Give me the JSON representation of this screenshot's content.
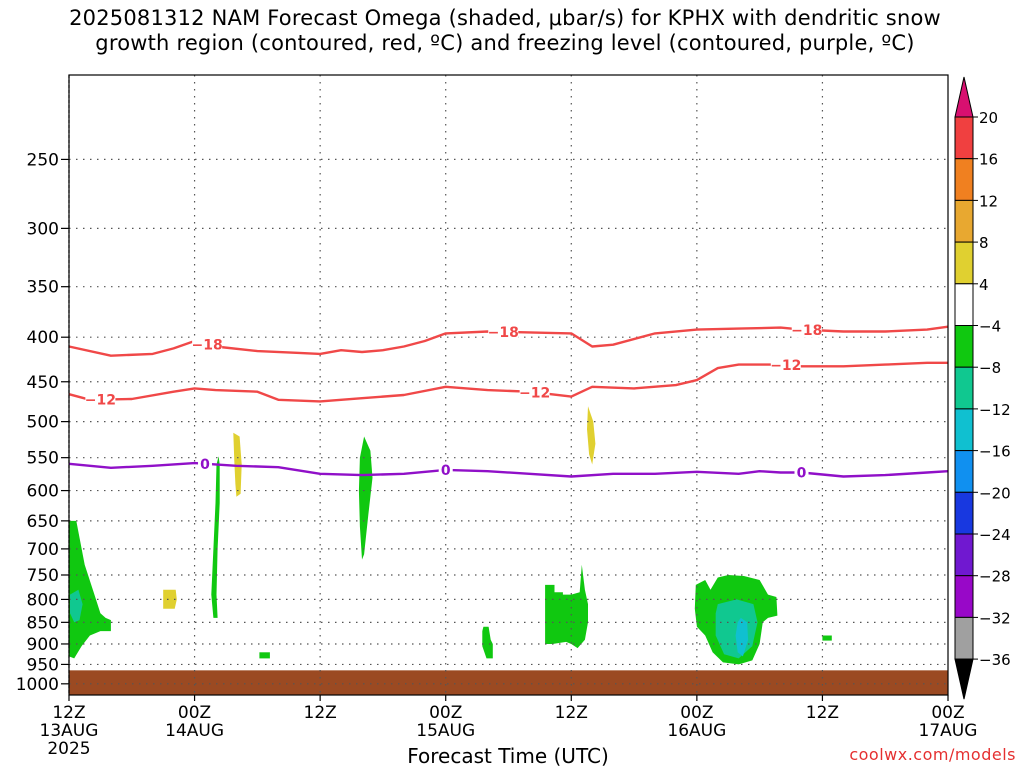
{
  "title": {
    "line1": "2025081312 NAM Forecast Omega (shaded, μbar/s) for KPHX with dendritic snow",
    "line2": "growth region (contoured, red, ºC) and freezing level (contoured, purple, ºC)"
  },
  "credit": "coolwx.com/models",
  "chart_data": {
    "type": "heatmap",
    "title": "2025081312 NAM Forecast Omega (shaded, μbar/s) for KPHX with dendritic snow growth region (contoured, red, ºC) and freezing level (contoured, purple, ºC)",
    "xlabel": "Forecast Time (UTC)",
    "ylabel": "",
    "x_unit": "hours from 2025-08-13 12Z",
    "xlim": [
      0,
      84
    ],
    "ylim": [
      1030,
      200
    ],
    "y_scale": "log-pressure (reversed)",
    "grid": true,
    "x_ticks": [
      {
        "x": 0,
        "lines": [
          "12Z",
          "13AUG",
          "2025"
        ]
      },
      {
        "x": 12,
        "lines": [
          "00Z",
          "14AUG"
        ]
      },
      {
        "x": 24,
        "lines": [
          "12Z"
        ]
      },
      {
        "x": 36,
        "lines": [
          "00Z",
          "15AUG"
        ]
      },
      {
        "x": 48,
        "lines": [
          "12Z"
        ]
      },
      {
        "x": 60,
        "lines": [
          "00Z",
          "16AUG"
        ]
      },
      {
        "x": 72,
        "lines": [
          "12Z"
        ]
      },
      {
        "x": 84,
        "lines": [
          "00Z",
          "17AUG"
        ]
      }
    ],
    "y_ticks": [
      250,
      300,
      350,
      400,
      450,
      500,
      550,
      600,
      650,
      700,
      750,
      800,
      850,
      900,
      950,
      1000
    ],
    "colorbar": {
      "labels": [
        "20",
        "16",
        "12",
        "8",
        "4",
        "−4",
        "−8",
        "−12",
        "−16",
        "−20",
        "−24",
        "−28",
        "−32",
        "−36"
      ],
      "colors": [
        "#f04040",
        "#f08020",
        "#e8a830",
        "#e0d030",
        "#ffffff",
        "#10c810",
        "#10c890",
        "#10c0d0",
        "#1090f0",
        "#1838e0",
        "#7018d0",
        "#9808c8",
        "#a0a0a0"
      ],
      "top_color": "#d81070",
      "bottom_color": "#000000"
    },
    "ground": {
      "from_hpa": 965,
      "color": "#9b4a22"
    },
    "contours": [
      {
        "label": "-18",
        "color": "#f04848",
        "label_x": [
          13.2,
          41.5,
          70.5
        ],
        "points": [
          [
            0,
            410
          ],
          [
            4,
            420
          ],
          [
            8,
            418
          ],
          [
            10,
            412
          ],
          [
            12,
            404
          ],
          [
            14,
            410
          ],
          [
            18,
            415
          ],
          [
            22,
            417
          ],
          [
            24,
            418
          ],
          [
            26,
            414
          ],
          [
            28,
            416
          ],
          [
            30,
            414
          ],
          [
            32,
            410
          ],
          [
            34,
            404
          ],
          [
            36,
            396
          ],
          [
            40,
            394
          ],
          [
            44,
            395
          ],
          [
            48,
            396
          ],
          [
            50,
            410
          ],
          [
            52,
            408
          ],
          [
            56,
            396
          ],
          [
            60,
            392
          ],
          [
            64,
            391
          ],
          [
            68,
            390
          ],
          [
            70,
            392
          ],
          [
            74,
            394
          ],
          [
            78,
            394
          ],
          [
            82,
            392
          ],
          [
            84,
            389
          ]
        ]
      },
      {
        "label": "-12",
        "color": "#f04848",
        "label_x": [
          3.0,
          44.5,
          68.5
        ],
        "points": [
          [
            0,
            465
          ],
          [
            2,
            472
          ],
          [
            6,
            471
          ],
          [
            10,
            462
          ],
          [
            12,
            458
          ],
          [
            14,
            460
          ],
          [
            18,
            462
          ],
          [
            20,
            472
          ],
          [
            24,
            474
          ],
          [
            28,
            470
          ],
          [
            32,
            466
          ],
          [
            36,
            456
          ],
          [
            40,
            460
          ],
          [
            44,
            462
          ],
          [
            48,
            468
          ],
          [
            50,
            456
          ],
          [
            54,
            458
          ],
          [
            58,
            454
          ],
          [
            60,
            448
          ],
          [
            62,
            434
          ],
          [
            64,
            430
          ],
          [
            68,
            430
          ],
          [
            70,
            432
          ],
          [
            74,
            432
          ],
          [
            78,
            430
          ],
          [
            82,
            428
          ],
          [
            84,
            428
          ]
        ]
      },
      {
        "label": "0",
        "color": "#9010c8",
        "label_x": [
          13.0,
          36.0,
          70.0
        ],
        "points": [
          [
            0,
            559
          ],
          [
            4,
            565
          ],
          [
            8,
            562
          ],
          [
            12,
            558
          ],
          [
            16,
            562
          ],
          [
            20,
            564
          ],
          [
            24,
            574
          ],
          [
            28,
            576
          ],
          [
            32,
            574
          ],
          [
            36,
            568
          ],
          [
            40,
            570
          ],
          [
            44,
            574
          ],
          [
            48,
            578
          ],
          [
            52,
            574
          ],
          [
            56,
            574
          ],
          [
            60,
            571
          ],
          [
            64,
            574
          ],
          [
            66,
            570
          ],
          [
            68,
            572
          ],
          [
            70,
            572
          ],
          [
            74,
            578
          ],
          [
            78,
            576
          ],
          [
            82,
            572
          ],
          [
            84,
            570
          ]
        ]
      }
    ],
    "shaded_regions": [
      {
        "omega_range": "-8 to -4",
        "color": "#10c810",
        "points": [
          [
            0,
            650
          ],
          [
            0.7,
            650
          ],
          [
            1.5,
            730
          ],
          [
            2.5,
            795
          ],
          [
            3,
            830
          ],
          [
            3.5,
            840
          ],
          [
            4,
            845
          ],
          [
            4,
            870
          ],
          [
            3,
            870
          ],
          [
            2,
            880
          ],
          [
            1.2,
            905
          ],
          [
            0.5,
            935
          ],
          [
            0,
            930
          ]
        ]
      },
      {
        "omega_range": "-12 to -8",
        "color": "#10c890",
        "points": [
          [
            0.1,
            790
          ],
          [
            0.9,
            780
          ],
          [
            1.3,
            810
          ],
          [
            1.0,
            845
          ],
          [
            0.5,
            850
          ],
          [
            0.1,
            830
          ]
        ]
      },
      {
        "omega_range": "4 to 8",
        "color": "#e0d030",
        "points": [
          [
            9,
            780
          ],
          [
            10.2,
            780
          ],
          [
            10.3,
            800
          ],
          [
            10.1,
            820
          ],
          [
            9,
            820
          ]
        ]
      },
      {
        "omega_range": "-8 to -4",
        "color": "#10c810",
        "points": [
          [
            14.3,
            548
          ],
          [
            14.4,
            560
          ],
          [
            14.4,
            620
          ],
          [
            14.2,
            700
          ],
          [
            14.1,
            790
          ],
          [
            14.2,
            840
          ],
          [
            13.8,
            840
          ],
          [
            13.6,
            790
          ],
          [
            13.8,
            700
          ],
          [
            14.0,
            620
          ],
          [
            14.1,
            560
          ]
        ]
      },
      {
        "omega_range": "4 to 8",
        "color": "#e0d030",
        "points": [
          [
            15.7,
            515
          ],
          [
            16.3,
            520
          ],
          [
            16.5,
            560
          ],
          [
            16.4,
            605
          ],
          [
            16.0,
            610
          ],
          [
            15.9,
            590
          ],
          [
            15.8,
            555
          ]
        ]
      },
      {
        "omega_range": "-8 to -4",
        "color": "#10c810",
        "points": [
          [
            18.2,
            920
          ],
          [
            19.2,
            920
          ],
          [
            19.2,
            935
          ],
          [
            18.2,
            935
          ]
        ]
      },
      {
        "omega_range": "-8 to -4",
        "color": "#10c810",
        "points": [
          [
            28.2,
            520
          ],
          [
            28.8,
            540
          ],
          [
            29.0,
            580
          ],
          [
            28.6,
            640
          ],
          [
            28.2,
            710
          ],
          [
            28.0,
            720
          ],
          [
            27.8,
            660
          ],
          [
            27.7,
            600
          ],
          [
            27.8,
            550
          ]
        ]
      },
      {
        "omega_range": "-8 to -4",
        "color": "#10c810",
        "points": [
          [
            39.6,
            860
          ],
          [
            40.1,
            860
          ],
          [
            40.3,
            890
          ],
          [
            40.5,
            900
          ],
          [
            40.5,
            935
          ],
          [
            39.9,
            935
          ],
          [
            39.5,
            905
          ],
          [
            39.5,
            870
          ]
        ]
      },
      {
        "omega_range": "-8 to -4",
        "color": "#10c810",
        "points": [
          [
            45.5,
            770
          ],
          [
            46.4,
            770
          ],
          [
            46.4,
            785
          ],
          [
            47.2,
            785
          ],
          [
            47.2,
            790
          ],
          [
            48.0,
            790
          ],
          [
            48.8,
            785
          ],
          [
            49.0,
            730
          ],
          [
            49.3,
            780
          ],
          [
            49.6,
            810
          ],
          [
            49.6,
            850
          ],
          [
            49.3,
            890
          ],
          [
            48.6,
            910
          ],
          [
            48.0,
            900
          ],
          [
            47.5,
            895
          ],
          [
            46.2,
            900
          ],
          [
            45.5,
            900
          ]
        ]
      },
      {
        "omega_range": "4 to 8",
        "color": "#e0d030",
        "points": [
          [
            49.6,
            480
          ],
          [
            50.1,
            500
          ],
          [
            50.3,
            530
          ],
          [
            50.0,
            560
          ],
          [
            49.7,
            545
          ],
          [
            49.5,
            510
          ]
        ]
      },
      {
        "omega_range": "-8 to -4",
        "color": "#10c810",
        "points": [
          [
            62.0,
            755
          ],
          [
            63.0,
            750
          ],
          [
            64.5,
            752
          ],
          [
            66.0,
            760
          ],
          [
            66.8,
            790
          ],
          [
            67.6,
            795
          ],
          [
            67.7,
            835
          ],
          [
            66.8,
            840
          ],
          [
            66.3,
            850
          ],
          [
            66.0,
            900
          ],
          [
            65.3,
            940
          ],
          [
            64.0,
            950
          ],
          [
            62.5,
            945
          ],
          [
            61.5,
            920
          ],
          [
            60.8,
            880
          ],
          [
            60.0,
            860
          ],
          [
            59.8,
            820
          ],
          [
            59.9,
            770
          ],
          [
            60.8,
            760
          ],
          [
            61.3,
            780
          ]
        ]
      },
      {
        "omega_range": "-12 to -8",
        "color": "#10c890",
        "points": [
          [
            62.0,
            810
          ],
          [
            63.8,
            800
          ],
          [
            65.4,
            810
          ],
          [
            65.8,
            850
          ],
          [
            65.3,
            905
          ],
          [
            64.0,
            935
          ],
          [
            62.6,
            925
          ],
          [
            61.8,
            880
          ],
          [
            61.8,
            830
          ]
        ]
      },
      {
        "omega_range": "-16 to -12",
        "color": "#10c0d0",
        "points": [
          [
            64.2,
            840
          ],
          [
            64.8,
            850
          ],
          [
            64.9,
            890
          ],
          [
            64.4,
            930
          ],
          [
            63.9,
            920
          ],
          [
            63.7,
            880
          ],
          [
            63.9,
            850
          ]
        ]
      },
      {
        "omega_range": "-8 to -4",
        "color": "#10c810",
        "points": [
          [
            72.0,
            880
          ],
          [
            72.9,
            880
          ],
          [
            72.9,
            892
          ],
          [
            72.0,
            892
          ]
        ]
      }
    ]
  }
}
